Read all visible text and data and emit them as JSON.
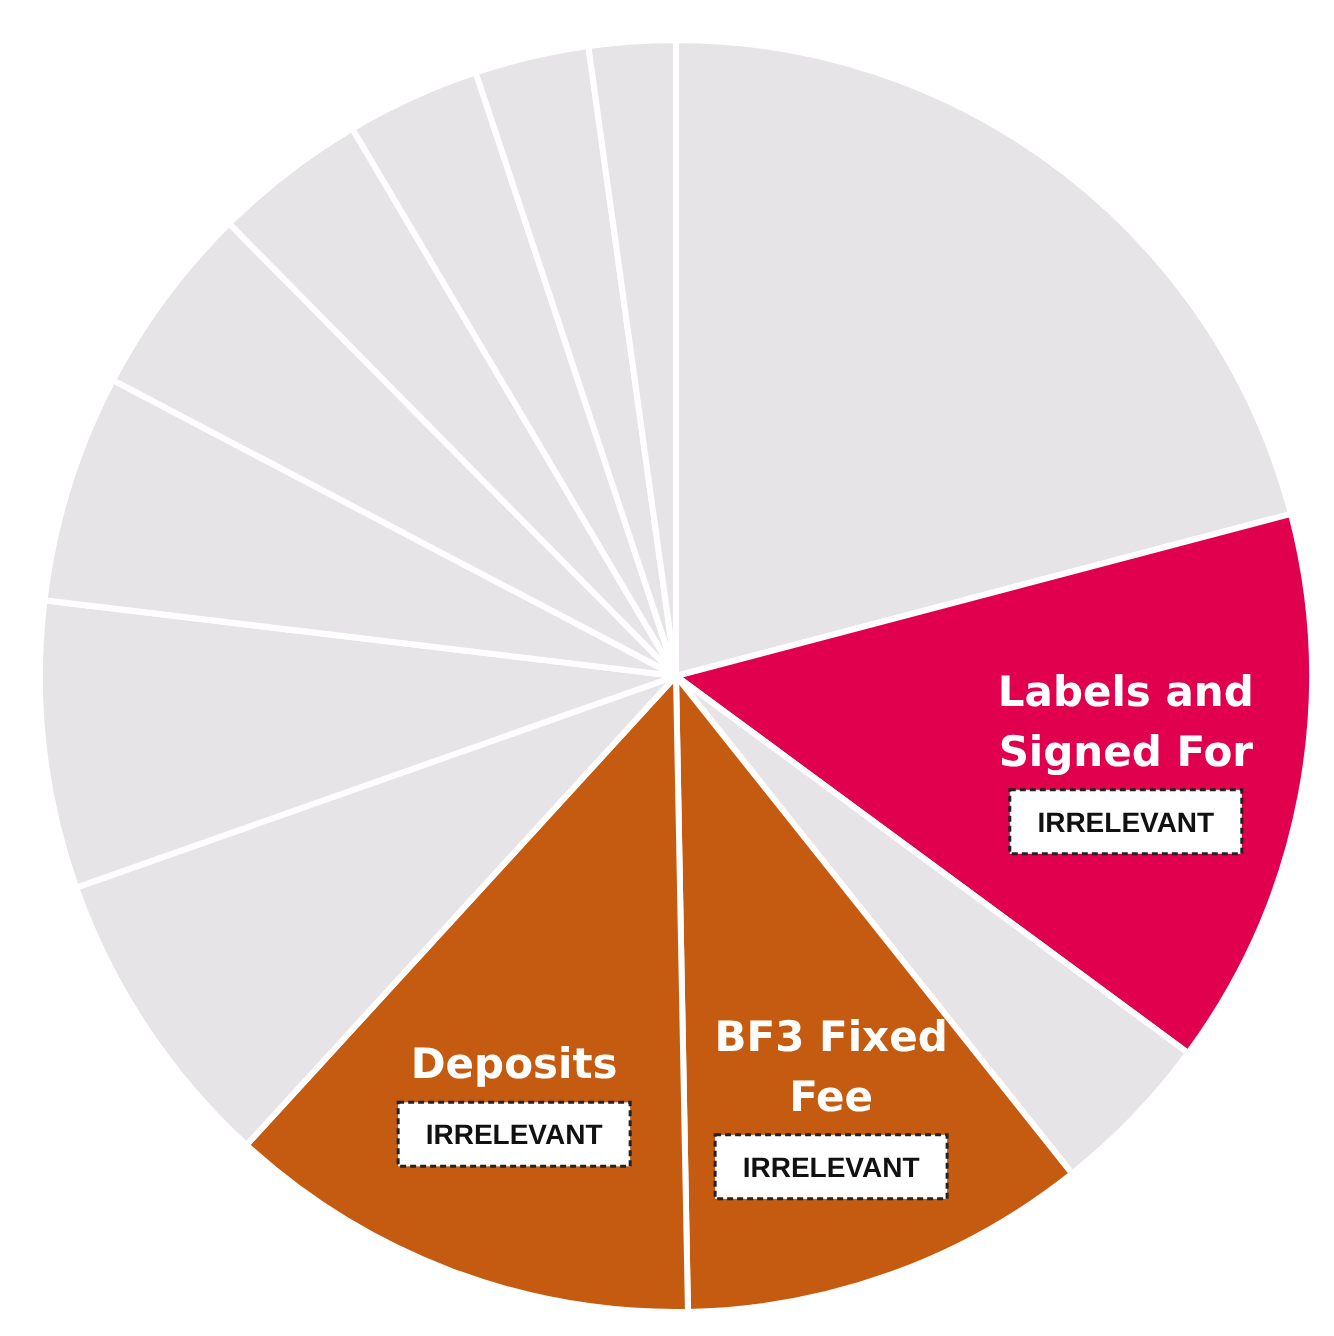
{
  "chart_data": {
    "type": "pie",
    "categories": [
      null,
      "Labels and Signed For",
      null,
      "BF3 Fixed Fee",
      "Deposits",
      null,
      null,
      null,
      null,
      null,
      null,
      null,
      null
    ],
    "values": [
      20.9,
      14.2,
      4.2,
      10.4,
      12.1,
      7.8,
      7.3,
      5.8,
      4.9,
      3.9,
      3.4,
      2.9,
      2.2
    ],
    "colors": [
      "#e6e4e6",
      "#e0004d",
      "#e6e4e6",
      "#c55a11",
      "#c55a11",
      "#e6e4e6",
      "#e6e4e6",
      "#e6e4e6",
      "#e6e4e6",
      "#e6e4e6",
      "#e6e4e6",
      "#e6e4e6",
      "#e6e4e6"
    ],
    "annotations": [
      {
        "text": "IRRELEVANT",
        "x": "Labels and Signed For"
      },
      {
        "text": "IRRELEVANT",
        "x": "BF3 Fixed Fee"
      },
      {
        "text": "IRRELEVANT",
        "x": "Deposits"
      }
    ]
  }
}
